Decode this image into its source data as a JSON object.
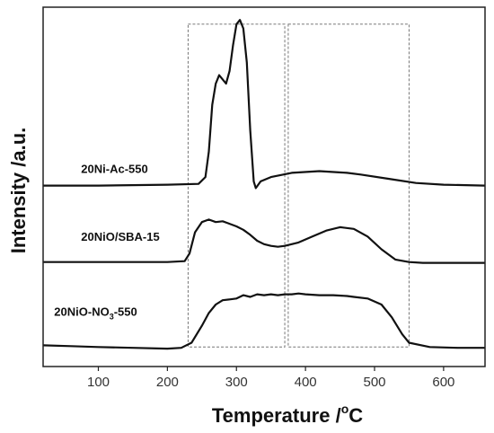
{
  "chart_data": {
    "type": "line",
    "xlabel_main": "Temperature /",
    "xlabel_sup": "o",
    "xlabel_unit": "C",
    "ylabel": "Intensity /a.u.",
    "xlim": [
      20,
      660
    ],
    "xticks": [
      100,
      200,
      300,
      400,
      500,
      600
    ],
    "yticks_shown": false,
    "grid": false,
    "colors": {
      "line": "#111111",
      "box": "#777777",
      "axis": "#222222"
    },
    "highlight_boxes": [
      {
        "x": [
          230,
          370
        ],
        "y": [
          0.05,
          3.85
        ]
      },
      {
        "x": [
          375,
          550
        ],
        "y": [
          0.05,
          3.85
        ]
      }
    ],
    "series": [
      {
        "name_main": "20Ni-Ac-550",
        "name_sub": "",
        "name_rest": "",
        "label_pos": [
          75,
          2.1
        ],
        "x": [
          20,
          100,
          200,
          245,
          255,
          260,
          265,
          270,
          275,
          280,
          285,
          290,
          295,
          300,
          305,
          310,
          315,
          320,
          325,
          328,
          335,
          350,
          380,
          420,
          460,
          480,
          520,
          560,
          600,
          660
        ],
        "y": [
          1.95,
          1.95,
          1.96,
          1.97,
          2.05,
          2.35,
          2.9,
          3.15,
          3.25,
          3.2,
          3.15,
          3.3,
          3.6,
          3.85,
          3.9,
          3.8,
          3.4,
          2.6,
          2.0,
          1.92,
          2.0,
          2.05,
          2.1,
          2.12,
          2.1,
          2.08,
          2.03,
          1.98,
          1.96,
          1.95
        ]
      },
      {
        "name_main": "20NiO/SBA-15",
        "name_sub": "",
        "name_rest": "",
        "label_pos": [
          75,
          1.3
        ],
        "x": [
          20,
          100,
          200,
          225,
          232,
          240,
          250,
          260,
          270,
          280,
          290,
          300,
          310,
          320,
          330,
          340,
          350,
          360,
          370,
          390,
          410,
          430,
          450,
          470,
          490,
          510,
          530,
          550,
          570,
          600,
          660
        ],
        "y": [
          1.05,
          1.05,
          1.05,
          1.06,
          1.15,
          1.4,
          1.52,
          1.55,
          1.52,
          1.53,
          1.5,
          1.47,
          1.43,
          1.37,
          1.3,
          1.26,
          1.24,
          1.23,
          1.24,
          1.28,
          1.35,
          1.42,
          1.46,
          1.44,
          1.35,
          1.2,
          1.08,
          1.05,
          1.04,
          1.04,
          1.04
        ]
      },
      {
        "name_main": "20NiO-NO",
        "name_sub": "3",
        "name_rest": "-550",
        "label_pos": [
          36,
          0.42
        ],
        "x": [
          20,
          60,
          100,
          150,
          200,
          220,
          235,
          250,
          260,
          270,
          280,
          290,
          300,
          310,
          320,
          330,
          340,
          350,
          360,
          370,
          380,
          390,
          400,
          420,
          440,
          460,
          470,
          490,
          510,
          525,
          540,
          550,
          580,
          620,
          660
        ],
        "y": [
          0.07,
          0.06,
          0.05,
          0.04,
          0.03,
          0.04,
          0.1,
          0.3,
          0.45,
          0.55,
          0.6,
          0.61,
          0.62,
          0.66,
          0.64,
          0.67,
          0.66,
          0.67,
          0.66,
          0.67,
          0.67,
          0.68,
          0.67,
          0.66,
          0.66,
          0.65,
          0.64,
          0.62,
          0.55,
          0.4,
          0.2,
          0.1,
          0.05,
          0.04,
          0.04
        ]
      }
    ]
  }
}
